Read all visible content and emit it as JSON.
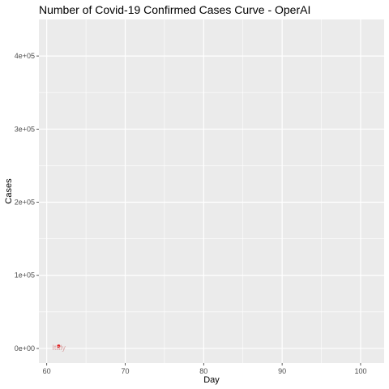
{
  "chart_data": {
    "type": "scatter",
    "title": "Number of Covid-19 Confirmed Cases Curve - OperAI",
    "xlabel": "Day",
    "ylabel": "Cases",
    "xlim": [
      59,
      103
    ],
    "ylim": [
      -20000,
      450000
    ],
    "x_ticks": [
      60,
      70,
      80,
      90,
      100
    ],
    "x_tick_labels": [
      "60",
      "70",
      "80",
      "90",
      "100"
    ],
    "x_minor": [
      65,
      75,
      85,
      95
    ],
    "y_ticks": [
      0,
      100000,
      200000,
      300000,
      400000
    ],
    "y_tick_labels": [
      "0e+00",
      "1e+05",
      "2e+05",
      "3e+05",
      "4e+05"
    ],
    "y_minor": [
      50000,
      150000,
      250000,
      350000
    ],
    "background": "#ebebeb",
    "grid": true,
    "grid_color": "#ffffff",
    "series": [
      {
        "name": "",
        "color": "#e41a1c",
        "points": [
          {
            "x": 61,
            "y": 888,
            "label": "Italy"
          }
        ]
      }
    ]
  }
}
